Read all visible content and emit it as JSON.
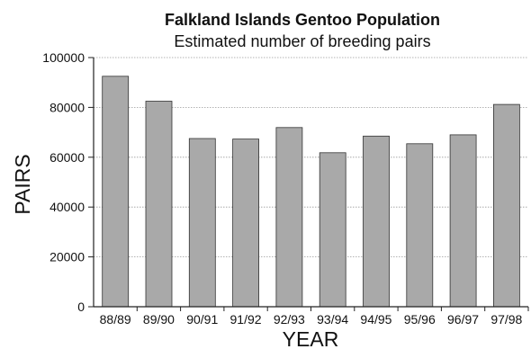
{
  "chart_data": {
    "type": "bar",
    "title": "Falkland Islands Gentoo Population",
    "subtitle": "Estimated number of breeding pairs",
    "xlabel": "YEAR",
    "ylabel": "PAIRS",
    "categories": [
      "88/89",
      "89/90",
      "90/91",
      "91/92",
      "92/93",
      "93/94",
      "94/95",
      "95/96",
      "96/97",
      "97/98"
    ],
    "values": [
      92500,
      82500,
      67500,
      67300,
      71900,
      61800,
      68500,
      65400,
      69000,
      81200
    ],
    "ylim": [
      0,
      100000
    ],
    "yticks": [
      "0",
      "20000",
      "40000",
      "60000",
      "80000",
      "100000"
    ],
    "grid": true,
    "legend": "none",
    "colors": {
      "bar": "#a9a9a9",
      "bar_edge": "#333333",
      "grid": "#9a9a9a",
      "axis": "#222222"
    }
  }
}
